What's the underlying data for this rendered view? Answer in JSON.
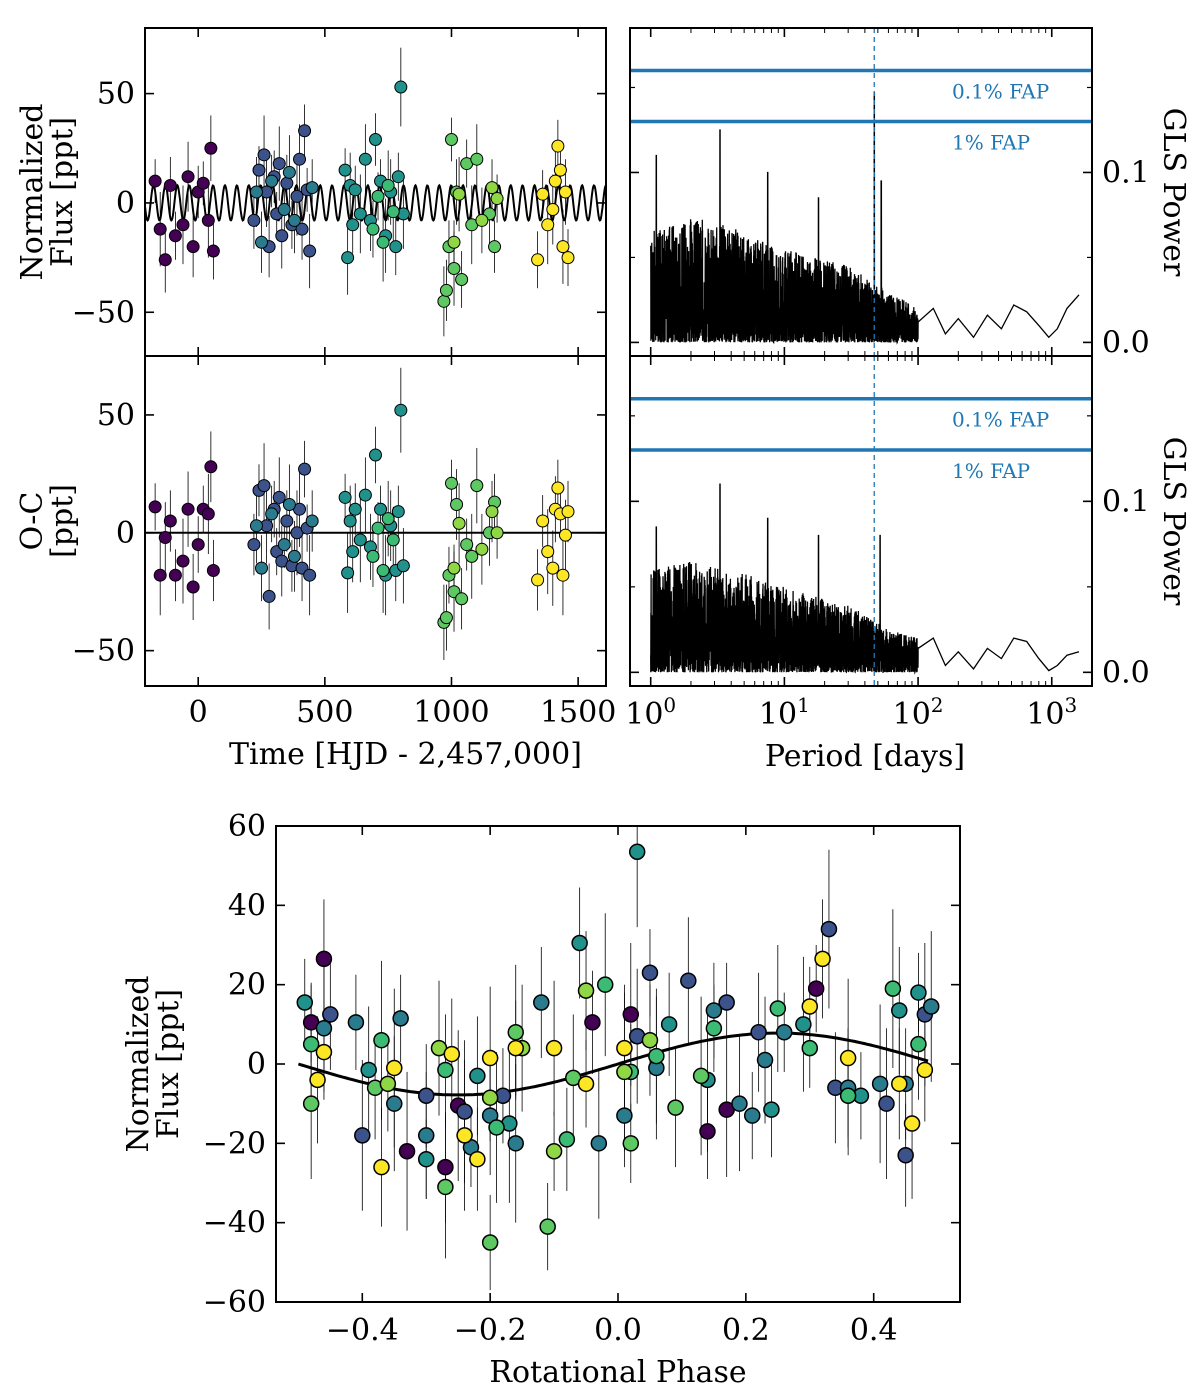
{
  "figure": {
    "colors": {
      "fap_line": "#1f77b4",
      "model_line": "#000000",
      "viridis": [
        "#440154",
        "#3b528b",
        "#21918c",
        "#5ec962",
        "#fde725"
      ]
    }
  },
  "chart_data": [
    {
      "id": "lc",
      "type": "scatter",
      "title": "",
      "xlabel": "Time [HJD - 2,457,000]",
      "ylabel": [
        "Normalized",
        "Flux [ppt]"
      ],
      "xlim": [
        -210,
        1610
      ],
      "ylim": [
        -70,
        80
      ],
      "xticks": [
        0,
        500,
        1000,
        1500
      ],
      "yticks": [
        -50,
        0,
        50
      ],
      "model": {
        "amplitude": 8,
        "period_days": 47,
        "phase_days": 0
      },
      "groups": [
        {
          "color": "#440154",
          "t": [
            -170,
            -150,
            -130,
            -110,
            -90,
            -60,
            -40,
            -20,
            0,
            20,
            40,
            50,
            60
          ],
          "y": [
            10,
            -12,
            -26,
            8,
            -15,
            -10,
            12,
            -20,
            5,
            9,
            -8,
            25,
            -22
          ]
        },
        {
          "color": "#3b528b",
          "t": [
            220,
            240,
            260,
            270,
            280,
            300,
            310,
            320,
            330,
            350,
            370,
            390,
            400,
            410,
            420,
            430,
            440
          ],
          "y": [
            -8,
            15,
            22,
            5,
            -20,
            12,
            -5,
            18,
            -15,
            9,
            -10,
            3,
            20,
            -12,
            33,
            6,
            -22
          ]
        },
        {
          "color": "#2a7b8e",
          "t": [
            230,
            250,
            290,
            340,
            360,
            380,
            450
          ],
          "y": [
            5,
            -18,
            10,
            -3,
            14,
            -8,
            7
          ]
        },
        {
          "color": "#21918c",
          "t": [
            580,
            590,
            600,
            610,
            620,
            640,
            660,
            680,
            700,
            720,
            740,
            760,
            780,
            790,
            800,
            810
          ],
          "y": [
            15,
            -25,
            8,
            -10,
            6,
            -5,
            20,
            -8,
            29,
            10,
            -15,
            5,
            -20,
            12,
            53,
            -5
          ]
        },
        {
          "color": "#3cbb75",
          "t": [
            690,
            710,
            730,
            750,
            770
          ],
          "y": [
            -12,
            3,
            -18,
            8,
            -4
          ]
        },
        {
          "color": "#5ec962",
          "t": [
            970,
            980,
            990,
            1000,
            1010,
            1020,
            1040,
            1060,
            1080,
            1100,
            1150,
            1170
          ],
          "y": [
            -45,
            -40,
            -20,
            29,
            -30,
            5,
            -35,
            18,
            -10,
            20,
            -5,
            -20
          ]
        },
        {
          "color": "#8fd744",
          "t": [
            1010,
            1030,
            1120,
            1160,
            1180
          ],
          "y": [
            -18,
            4,
            -8,
            7,
            2
          ]
        },
        {
          "color": "#fde725",
          "t": [
            1340,
            1360,
            1380,
            1400,
            1410,
            1420,
            1430,
            1440,
            1450,
            1460
          ],
          "y": [
            -26,
            4,
            -10,
            -3,
            10,
            26,
            15,
            -20,
            5,
            -25
          ]
        }
      ]
    },
    {
      "id": "resid",
      "type": "scatter",
      "title": "",
      "xlabel": "Time [HJD - 2,457,000]",
      "ylabel": [
        "O-C",
        "[ppt]"
      ],
      "xlim": [
        -210,
        1610
      ],
      "ylim": [
        -65,
        75
      ],
      "xticks": [
        0,
        500,
        1000,
        1500
      ],
      "yticks": [
        -50,
        0,
        50
      ],
      "zero_line": true,
      "groups": [
        {
          "color": "#440154",
          "t": [
            -170,
            -150,
            -130,
            -110,
            -90,
            -60,
            -40,
            -20,
            0,
            20,
            40,
            50,
            60
          ],
          "y": [
            11,
            -18,
            -2,
            5,
            -18,
            -12,
            10,
            -23,
            -5,
            10,
            8,
            28,
            -16
          ]
        },
        {
          "color": "#3b528b",
          "t": [
            220,
            240,
            260,
            270,
            280,
            300,
            310,
            320,
            330,
            350,
            370,
            390,
            400,
            410,
            420,
            430,
            440
          ],
          "y": [
            -5,
            18,
            20,
            3,
            -27,
            10,
            -8,
            15,
            -12,
            5,
            -14,
            0,
            10,
            -15,
            27,
            2,
            -18
          ]
        },
        {
          "color": "#2a7b8e",
          "t": [
            230,
            250,
            290,
            340,
            360,
            380,
            450
          ],
          "y": [
            3,
            -15,
            8,
            -5,
            12,
            -10,
            5
          ]
        },
        {
          "color": "#21918c",
          "t": [
            580,
            590,
            600,
            610,
            620,
            640,
            660,
            680,
            700,
            720,
            740,
            760,
            780,
            790,
            800,
            810
          ],
          "y": [
            15,
            -17,
            5,
            -8,
            10,
            -3,
            16,
            -6,
            33,
            10,
            -18,
            3,
            -16,
            9,
            52,
            -14
          ]
        },
        {
          "color": "#3cbb75",
          "t": [
            690,
            710,
            730,
            750,
            770
          ],
          "y": [
            -10,
            2,
            -16,
            6,
            -3
          ]
        },
        {
          "color": "#5ec962",
          "t": [
            970,
            980,
            990,
            1000,
            1010,
            1020,
            1040,
            1060,
            1080,
            1100,
            1150,
            1170
          ],
          "y": [
            -38,
            -36,
            -18,
            21,
            -25,
            12,
            -28,
            -5,
            -10,
            20,
            0,
            13
          ]
        },
        {
          "color": "#8fd744",
          "t": [
            1010,
            1030,
            1120,
            1160,
            1180
          ],
          "y": [
            -15,
            4,
            -7,
            9,
            0
          ]
        },
        {
          "color": "#fde725",
          "t": [
            1340,
            1360,
            1380,
            1400,
            1410,
            1420,
            1430,
            1440,
            1450,
            1460
          ],
          "y": [
            -20,
            5,
            -8,
            -15,
            10,
            19,
            8,
            -18,
            -1,
            9
          ]
        }
      ]
    },
    {
      "id": "gls1",
      "type": "line",
      "title": "",
      "xlabel": "",
      "ylabel": "GLS Power",
      "xscale": "log",
      "xlim": [
        0.7,
        2000
      ],
      "ylim": [
        -0.008,
        0.185
      ],
      "yticks": [
        0.0,
        0.1
      ],
      "ytick_labels": [
        "0.0",
        "0.1"
      ],
      "minor_yticks": [
        0.05,
        0.15
      ],
      "fap": [
        {
          "label": "0.1% FAP",
          "value": 0.16
        },
        {
          "label": "1% FAP",
          "value": 0.13
        }
      ],
      "best_period": 47,
      "peaks": [
        {
          "period": 47,
          "power": 0.147
        },
        {
          "period": 53,
          "power": 0.095
        },
        {
          "period": 3.3,
          "power": 0.125
        },
        {
          "period": 18,
          "power": 0.085
        },
        {
          "period": 7.5,
          "power": 0.1
        },
        {
          "period": 1.1,
          "power": 0.11
        }
      ],
      "envelope": {
        "p": [
          1,
          2,
          4,
          10,
          30,
          60,
          100,
          200
        ],
        "max": [
          0.065,
          0.075,
          0.068,
          0.055,
          0.045,
          0.03,
          0.02,
          0.012
        ]
      },
      "longp": {
        "p": [
          100,
          130,
          160,
          200,
          260,
          330,
          420,
          520,
          650,
          800,
          950,
          1100,
          1300,
          1600
        ],
        "y": [
          0.012,
          0.02,
          0.005,
          0.014,
          0.003,
          0.016,
          0.008,
          0.022,
          0.018,
          0.01,
          0.003,
          0.008,
          0.02,
          0.028
        ]
      }
    },
    {
      "id": "gls2",
      "type": "line",
      "title": "",
      "xlabel": "Period [days]",
      "ylabel": "GLS Power",
      "xscale": "log",
      "xlim": [
        0.7,
        2000
      ],
      "ylim": [
        -0.008,
        0.185
      ],
      "xticks": [
        1,
        10,
        100,
        1000
      ],
      "xtick_exps": [
        "0",
        "1",
        "2",
        "3"
      ],
      "yticks": [
        0.0,
        0.1
      ],
      "ytick_labels": [
        "0.0",
        "0.1"
      ],
      "minor_yticks": [
        0.05,
        0.15
      ],
      "fap": [
        {
          "label": "0.1% FAP",
          "value": 0.16
        },
        {
          "label": "1% FAP",
          "value": 0.13
        }
      ],
      "best_period": 47,
      "peaks": [
        {
          "period": 3.3,
          "power": 0.11
        },
        {
          "period": 18,
          "power": 0.08
        },
        {
          "period": 52,
          "power": 0.08
        },
        {
          "period": 7.5,
          "power": 0.09
        },
        {
          "period": 1.1,
          "power": 0.085
        },
        {
          "period": 120,
          "power": 0.035
        }
      ],
      "envelope": {
        "p": [
          1,
          2,
          4,
          10,
          30,
          60,
          100,
          200
        ],
        "max": [
          0.06,
          0.065,
          0.06,
          0.05,
          0.04,
          0.025,
          0.02,
          0.01
        ]
      },
      "longp": {
        "p": [
          100,
          130,
          160,
          200,
          260,
          330,
          420,
          520,
          650,
          800,
          950,
          1100,
          1300,
          1600
        ],
        "y": [
          0.014,
          0.02,
          0.004,
          0.012,
          0.002,
          0.014,
          0.008,
          0.02,
          0.018,
          0.008,
          0.001,
          0.004,
          0.01,
          0.012
        ]
      }
    },
    {
      "id": "phase",
      "type": "scatter",
      "title": "",
      "xlabel": "Rotational Phase",
      "ylabel": [
        "Normalized",
        "Flux [ppt]"
      ],
      "xlim": [
        -0.535,
        0.535
      ],
      "ylim": [
        -60,
        60
      ],
      "xticks": [
        -0.4,
        -0.2,
        0.0,
        0.2,
        0.4
      ],
      "xtick_labels": [
        "−0.4",
        "−0.2",
        "0.0",
        "0.2",
        "0.4"
      ],
      "yticks": [
        -60,
        -40,
        -20,
        0,
        20,
        40,
        60
      ],
      "ytick_labels": [
        "−60",
        "−40",
        "−20",
        "0",
        "20",
        "40",
        "60"
      ],
      "model": {
        "amplitude": 7.8,
        "peak_phase": 0.25
      },
      "groups": [
        {
          "color": "#440154",
          "x": [
            -0.48,
            -0.46,
            -0.33,
            -0.27,
            -0.25,
            -0.04,
            0.02,
            0.14,
            0.17,
            0.31
          ],
          "y": [
            10.5,
            26.5,
            -22,
            -26,
            -10.5,
            10.5,
            12.5,
            -17,
            -11.5,
            19
          ]
        },
        {
          "color": "#3b528b",
          "x": [
            -0.45,
            -0.4,
            -0.3,
            -0.24,
            -0.18,
            0.03,
            0.05,
            0.11,
            0.17,
            0.22,
            0.33,
            0.34,
            0.42,
            0.45,
            0.48
          ],
          "y": [
            12.5,
            -18,
            -8,
            -12,
            -8,
            7,
            23,
            21,
            15.5,
            8,
            34,
            -6,
            -10,
            -23,
            12.5
          ]
        },
        {
          "color": "#2a7b8e",
          "x": [
            -0.46,
            -0.41,
            -0.35,
            -0.34,
            -0.3,
            -0.23,
            -0.2,
            -0.16,
            -0.12,
            -0.03,
            0.01,
            0.06,
            0.15,
            0.19,
            0.21,
            0.23,
            0.26,
            0.36,
            0.41,
            0.45,
            0.49
          ],
          "y": [
            9,
            10.5,
            -10,
            11.5,
            -18,
            -21,
            -13,
            -20,
            15.5,
            -20,
            -13,
            -1,
            13.5,
            -10,
            -13,
            1,
            8,
            -6,
            -5,
            -5,
            14.5
          ]
        },
        {
          "color": "#21918c",
          "x": [
            -0.49,
            -0.39,
            -0.3,
            -0.22,
            -0.17,
            -0.06,
            0.03,
            0.08,
            0.14,
            0.24,
            0.29,
            0.38,
            0.44,
            0.47
          ],
          "y": [
            15.5,
            -1.5,
            -24,
            -3,
            -15,
            30.5,
            53.5,
            10,
            -4,
            -11.5,
            10,
            -8,
            13.5,
            18
          ]
        },
        {
          "color": "#3cbb75",
          "x": [
            -0.48,
            -0.37,
            -0.27,
            -0.19,
            -0.08,
            -0.02,
            0.02,
            0.06,
            0.15,
            0.25,
            0.3,
            0.36,
            0.43,
            0.47
          ],
          "y": [
            5,
            6,
            -1.5,
            -16,
            -19,
            20,
            -2,
            2,
            9,
            14,
            4,
            -8,
            19,
            5
          ]
        },
        {
          "color": "#5ec962",
          "x": [
            -0.48,
            -0.38,
            -0.27,
            -0.2,
            -0.16,
            -0.11,
            -0.07,
            0.02,
            0.09,
            0.13
          ],
          "y": [
            -10,
            -6,
            -31,
            -45,
            8,
            -41,
            -3.5,
            -20,
            -11,
            -3
          ]
        },
        {
          "color": "#8fd744",
          "x": [
            -0.36,
            -0.28,
            -0.2,
            -0.15,
            -0.1,
            -0.05,
            0.01,
            0.05
          ],
          "y": [
            -5,
            4,
            -8.5,
            4,
            -22,
            18.5,
            -2,
            6
          ]
        },
        {
          "color": "#fde725",
          "x": [
            -0.47,
            -0.46,
            -0.37,
            -0.35,
            -0.26,
            -0.24,
            -0.22,
            -0.2,
            -0.16,
            -0.1,
            -0.05,
            0.01,
            0.3,
            0.32,
            0.36,
            0.44,
            0.46,
            0.48
          ],
          "y": [
            -4,
            3,
            -26,
            -1,
            2.5,
            -18,
            -24,
            1.5,
            4,
            4,
            -5,
            4,
            14.5,
            26.5,
            1.5,
            -5,
            -15,
            -1.5
          ]
        }
      ]
    }
  ]
}
